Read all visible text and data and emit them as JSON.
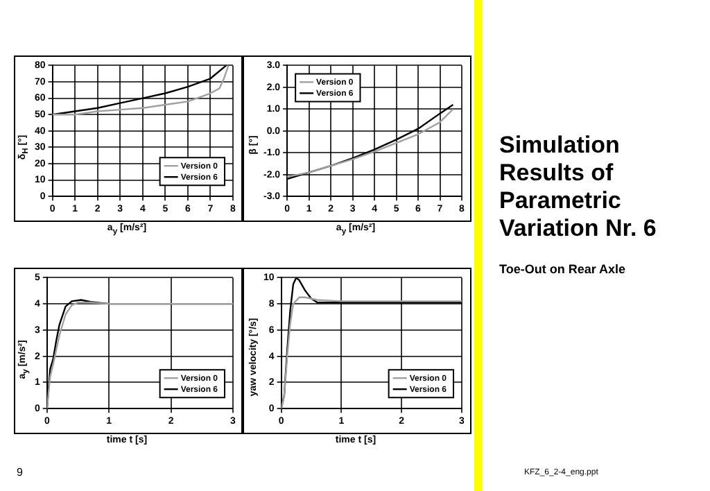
{
  "chart_data": [
    {
      "type": "line",
      "xlabel": "a$_{y}$ [m/s²]",
      "ylabel": "δ$_{H}$ [°]",
      "xlim": [
        0,
        8
      ],
      "xticks": [
        0,
        1,
        2,
        3,
        4,
        5,
        6,
        7,
        8
      ],
      "ylim": [
        0,
        80
      ],
      "yticks": [
        0,
        10,
        20,
        30,
        40,
        50,
        60,
        70,
        80
      ],
      "grid": true,
      "legend": "bottom right",
      "series": [
        {
          "name": "Version 0",
          "color": "#a0a0a0",
          "x": [
            0,
            1,
            2,
            3,
            4,
            5,
            6,
            7,
            7.4,
            7.6,
            7.8
          ],
          "values": [
            50,
            50,
            52,
            53,
            54,
            56,
            58,
            63,
            66,
            72,
            80
          ]
        },
        {
          "name": "Version 6",
          "color": "#000000",
          "x": [
            0,
            1,
            2,
            3,
            4,
            5,
            6,
            7,
            7.7
          ],
          "values": [
            50,
            52,
            54,
            57,
            60,
            63,
            67,
            72,
            80
          ]
        }
      ]
    },
    {
      "type": "line",
      "xlabel": "a$_{y}$ [m/s²]",
      "ylabel": "β [°]",
      "xlim": [
        0,
        8
      ],
      "xticks": [
        0,
        1,
        2,
        3,
        4,
        5,
        6,
        7,
        8
      ],
      "ylim": [
        -3,
        3
      ],
      "yticks": [
        {
          "value": -3,
          "label": "-3.0"
        },
        {
          "value": -2,
          "label": "-2.0"
        },
        {
          "value": -1,
          "label": "-1.0"
        },
        {
          "value": 0,
          "label": "0.0"
        },
        {
          "value": 1,
          "label": "1.0"
        },
        {
          "value": 2,
          "label": "2.0"
        },
        {
          "value": 3,
          "label": "3.0"
        }
      ],
      "grid": true,
      "legend": "top left",
      "series": [
        {
          "name": "Version 0",
          "color": "#a0a0a0",
          "x": [
            0,
            1,
            2,
            3,
            4,
            5,
            6,
            7,
            7.6
          ],
          "values": [
            -2.1,
            -1.9,
            -1.6,
            -1.3,
            -0.95,
            -0.55,
            -0.15,
            0.4,
            1.0
          ]
        },
        {
          "name": "Version 6",
          "color": "#000000",
          "x": [
            0,
            1,
            2,
            3,
            4,
            5,
            6,
            7,
            7.6
          ],
          "values": [
            -2.2,
            -1.9,
            -1.6,
            -1.25,
            -0.85,
            -0.4,
            0.1,
            0.8,
            1.2
          ]
        }
      ]
    },
    {
      "type": "line",
      "xlabel": "time t [s]",
      "ylabel": "a$_{y}$ [m/s²]",
      "xlim": [
        0,
        3
      ],
      "xticks": [
        0,
        1,
        2,
        3
      ],
      "ylim": [
        0,
        5
      ],
      "yticks": [
        0,
        1,
        2,
        3,
        4,
        5
      ],
      "grid": true,
      "legend": "bottom right",
      "series": [
        {
          "name": "Version 0",
          "color": "#a0a0a0",
          "x": [
            0,
            0.05,
            0.1,
            0.2,
            0.3,
            0.4,
            0.5,
            0.7,
            1,
            3
          ],
          "values": [
            0,
            1.2,
            1.7,
            2.8,
            3.6,
            3.95,
            4.05,
            4.05,
            4.0,
            4.0
          ]
        },
        {
          "name": "Version 6",
          "color": "#000000",
          "x": [
            0,
            0.05,
            0.1,
            0.15,
            0.2,
            0.3,
            0.4,
            0.55,
            0.7,
            1,
            3
          ],
          "values": [
            0,
            1.5,
            1.9,
            2.6,
            3.2,
            3.9,
            4.1,
            4.15,
            4.08,
            4.0,
            4.0
          ]
        }
      ]
    },
    {
      "type": "line",
      "xlabel": "time t [s]",
      "ylabel": "yaw velocity [°/s]",
      "xlim": [
        0,
        3
      ],
      "xticks": [
        0,
        1,
        2,
        3
      ],
      "ylim": [
        0,
        10
      ],
      "yticks": [
        0,
        2,
        4,
        6,
        8,
        10
      ],
      "grid": true,
      "legend": "bottom right",
      "series": [
        {
          "name": "Version 0",
          "color": "#a0a0a0",
          "x": [
            0,
            0.05,
            0.1,
            0.15,
            0.2,
            0.3,
            0.4,
            0.6,
            1,
            3
          ],
          "values": [
            0,
            1,
            4,
            6.5,
            8,
            8.5,
            8.5,
            8.3,
            8.2,
            8.2
          ]
        },
        {
          "name": "Version 6",
          "color": "#000000",
          "x": [
            0,
            0.05,
            0.1,
            0.15,
            0.2,
            0.25,
            0.3,
            0.4,
            0.5,
            0.6,
            0.8,
            1,
            3
          ],
          "values": [
            0,
            1,
            4.5,
            7.5,
            9.5,
            10,
            9.8,
            9,
            8.4,
            8.1,
            8.1,
            8.1,
            8.1
          ]
        }
      ]
    },
    {
      "type": "other",
      "title": "Simulation Results of Parametric Variation Nr. 6",
      "subtitle": "Toe-Out on Rear Axle",
      "annotations": [
        "9",
        "KFZ_6_2-4_eng.ppt"
      ]
    }
  ]
}
